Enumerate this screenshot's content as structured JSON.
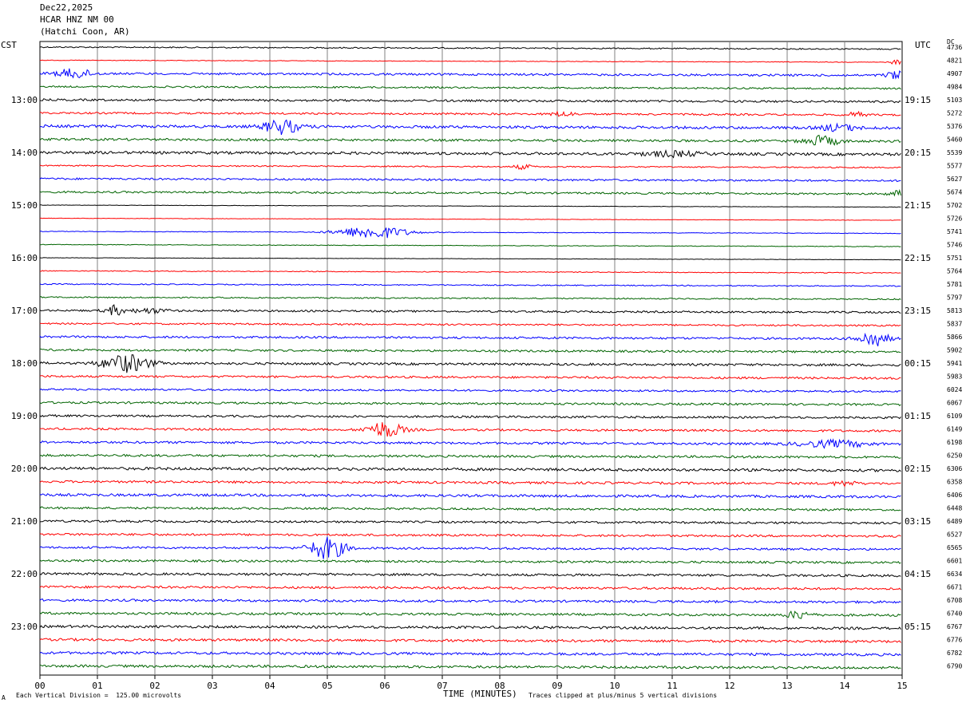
{
  "header": {
    "date": "Dec22,2025",
    "station": "HCAR HNZ NM 00",
    "location": "(Hatchi Coon, AR)"
  },
  "left_timezone": "CST",
  "right_timezone": "UTC",
  "dc_label": "DC",
  "footer": {
    "corner": "A",
    "scale_note": "Each Vertical Division =  125.00 microvolts",
    "xlabel": "TIME (MINUTES)",
    "clip_note": "Traces clipped at plus/minus 5 vertical divisions"
  },
  "chart_data": {
    "type": "line",
    "plot": "helicorder",
    "x_range": [
      0,
      15
    ],
    "x_ticks": [
      "00",
      "01",
      "02",
      "03",
      "04",
      "05",
      "06",
      "07",
      "08",
      "09",
      "10",
      "11",
      "12",
      "13",
      "14",
      "15"
    ],
    "trace_colors": [
      "#000000",
      "#ff0000",
      "#0000ff",
      "#006400"
    ],
    "left_hour_labels": [
      "13:00",
      "14:00",
      "15:00",
      "16:00",
      "17:00",
      "18:00",
      "19:00",
      "20:00",
      "21:00",
      "22:00",
      "23:00"
    ],
    "right_hour_labels": [
      "19:15",
      "20:15",
      "21:15",
      "22:15",
      "23:15",
      "00:15",
      "01:15",
      "02:15",
      "03:15",
      "04:15",
      "05:15"
    ],
    "dc_offsets": [
      "4736",
      "4821",
      "4907",
      "4984",
      "5103",
      "5272",
      "5376",
      "5460",
      "5539",
      "5577",
      "5627",
      "5674",
      "5702",
      "5726",
      "5741",
      "5746",
      "5751",
      "5764",
      "5781",
      "5797",
      "5813",
      "5837",
      "5866",
      "5902",
      "5941",
      "5983",
      "6024",
      "6067",
      "6109",
      "6149",
      "6198",
      "6250",
      "6306",
      "6358",
      "6406",
      "6448",
      "6489",
      "6527",
      "6565",
      "6601",
      "6634",
      "6671",
      "6708",
      "6740",
      "6767",
      "6776",
      "6782",
      "6790"
    ],
    "noise_level": [
      0.6,
      0.3,
      1.0,
      0.8,
      1.0,
      0.9,
      1.3,
      1.1,
      1.3,
      0.6,
      0.9,
      0.9,
      0.2,
      0.2,
      0.3,
      0.3,
      0.2,
      0.4,
      0.5,
      0.6,
      0.9,
      0.8,
      1.0,
      1.0,
      1.1,
      1.0,
      0.9,
      1.0,
      1.0,
      1.0,
      1.1,
      1.1,
      1.3,
      1.1,
      1.2,
      1.0,
      1.0,
      1.0,
      1.0,
      1.0,
      1.1,
      1.1,
      1.1,
      1.1,
      1.2,
      1.2,
      1.2,
      1.2
    ],
    "events": [
      {
        "trace": 1,
        "minute": 14.9,
        "amp": 3,
        "width": 0.1
      },
      {
        "trace": 2,
        "minute": 0.6,
        "amp": 6,
        "width": 0.3
      },
      {
        "trace": 2,
        "minute": 14.9,
        "amp": 5,
        "width": 0.2
      },
      {
        "trace": 5,
        "minute": 9.1,
        "amp": 3,
        "width": 0.2
      },
      {
        "trace": 5,
        "minute": 14.2,
        "amp": 3,
        "width": 0.15
      },
      {
        "trace": 6,
        "minute": 4.2,
        "amp": 9,
        "width": 0.3
      },
      {
        "trace": 6,
        "minute": 13.9,
        "amp": 4,
        "width": 0.3
      },
      {
        "trace": 7,
        "minute": 13.6,
        "amp": 6,
        "width": 0.3
      },
      {
        "trace": 8,
        "minute": 11.0,
        "amp": 3,
        "width": 0.5
      },
      {
        "trace": 9,
        "minute": 8.4,
        "amp": 3,
        "width": 0.15
      },
      {
        "trace": 11,
        "minute": 15.0,
        "amp": 5,
        "width": 0.2
      },
      {
        "trace": 14,
        "minute": 5.8,
        "amp": 8,
        "width": 0.6
      },
      {
        "trace": 20,
        "minute": 1.3,
        "amp": 6,
        "width": 0.15
      },
      {
        "trace": 20,
        "minute": 1.9,
        "amp": 3,
        "width": 0.3
      },
      {
        "trace": 22,
        "minute": 14.5,
        "amp": 10,
        "width": 0.25
      },
      {
        "trace": 24,
        "minute": 1.5,
        "amp": 11,
        "width": 0.4
      },
      {
        "trace": 29,
        "minute": 6.0,
        "amp": 10,
        "width": 0.3
      },
      {
        "trace": 30,
        "minute": 13.8,
        "amp": 4,
        "width": 0.6
      },
      {
        "trace": 33,
        "minute": 14.0,
        "amp": 3,
        "width": 0.2
      },
      {
        "trace": 38,
        "minute": 5.0,
        "amp": 14,
        "width": 0.3
      },
      {
        "trace": 43,
        "minute": 13.2,
        "amp": 5,
        "width": 0.2
      }
    ]
  }
}
